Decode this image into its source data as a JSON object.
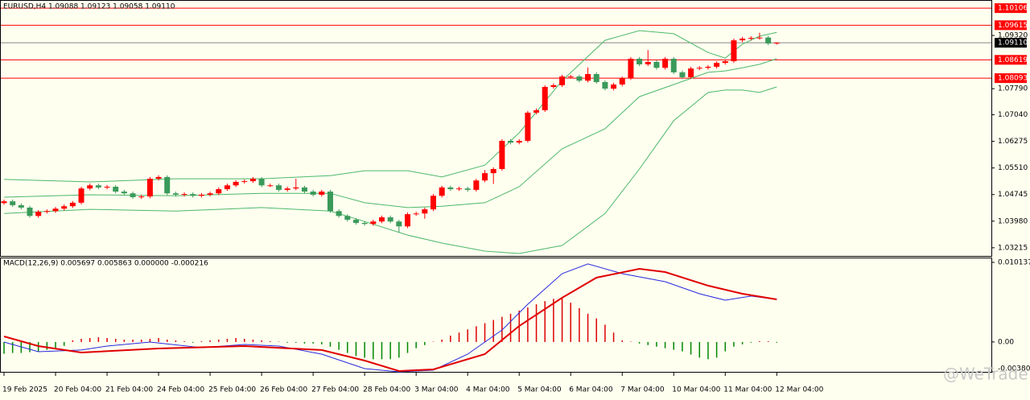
{
  "chart_data": [
    {
      "type": "candlestick",
      "title": "EURUSD,H4  1.09088 1.09123 1.09058 1.09110",
      "up_color": "#ff0000",
      "down_color": "#3a9a5a",
      "open": [
        1.045,
        1.0455,
        1.0444,
        1.0437,
        1.0413,
        1.0425,
        1.0427,
        1.0434,
        1.0441,
        1.0451,
        1.0492,
        1.0501,
        1.0495,
        1.0497,
        1.0483,
        1.0478,
        1.0467,
        1.0469,
        1.052,
        1.0525,
        1.0478,
        1.0474,
        1.0476,
        1.0471,
        1.0474,
        1.0478,
        1.049,
        1.0501,
        1.0511,
        1.0513,
        1.052,
        1.0501,
        1.0501,
        1.0488,
        1.0492,
        1.0495,
        1.0483,
        1.0474,
        1.0483,
        1.0427,
        1.0413,
        1.0402,
        1.0393,
        1.039,
        1.0397,
        1.0409,
        1.0397,
        1.0383,
        1.0418,
        1.042,
        1.0432,
        1.0471,
        1.0495,
        1.049,
        1.0492,
        1.0488,
        1.0515,
        1.0536,
        1.0548,
        1.0629,
        1.0624,
        1.0629,
        1.071,
        1.0717,
        1.0784,
        1.0789,
        1.0814,
        1.0814,
        1.0802,
        1.0821,
        1.0798,
        1.0779,
        1.0791,
        1.0809,
        1.0865,
        1.0849,
        1.0856,
        1.0839,
        1.0865,
        1.0826,
        1.0812,
        1.0837,
        1.0839,
        1.0842,
        1.0853,
        1.0858,
        1.0918,
        1.0923,
        1.0925,
        1.0926,
        1.09088
      ],
      "high": [
        1.046,
        1.046,
        1.0449,
        1.0442,
        1.043,
        1.0432,
        1.0439,
        1.0446,
        1.0456,
        1.0497,
        1.0506,
        1.0506,
        1.0502,
        1.0502,
        1.0488,
        1.0483,
        1.0474,
        1.0525,
        1.053,
        1.053,
        1.0483,
        1.0481,
        1.0481,
        1.0479,
        1.0483,
        1.0495,
        1.0506,
        1.0516,
        1.0518,
        1.0525,
        1.0525,
        1.0506,
        1.0506,
        1.0497,
        1.052,
        1.05,
        1.0488,
        1.0488,
        1.0488,
        1.0432,
        1.0418,
        1.0407,
        1.0398,
        1.0402,
        1.0414,
        1.0414,
        1.0402,
        1.0423,
        1.0425,
        1.0437,
        1.0476,
        1.05,
        1.05,
        1.0497,
        1.0497,
        1.052,
        1.0545,
        1.0553,
        1.0634,
        1.0634,
        1.0634,
        1.0715,
        1.0722,
        1.0789,
        1.0794,
        1.0819,
        1.0819,
        1.0819,
        1.084,
        1.0826,
        1.0803,
        1.0796,
        1.0814,
        1.087,
        1.087,
        1.089,
        1.0861,
        1.087,
        1.087,
        1.0831,
        1.0842,
        1.0844,
        1.0847,
        1.0858,
        1.0863,
        1.0923,
        1.0928,
        1.093,
        1.094,
        1.0931,
        1.09123
      ],
      "low": [
        1.0445,
        1.0439,
        1.0432,
        1.0408,
        1.0408,
        1.042,
        1.0422,
        1.0429,
        1.0436,
        1.0446,
        1.0487,
        1.049,
        1.049,
        1.0478,
        1.0473,
        1.0462,
        1.0462,
        1.0464,
        1.0515,
        1.0473,
        1.0469,
        1.0469,
        1.0466,
        1.0466,
        1.0469,
        1.0473,
        1.0485,
        1.0496,
        1.0506,
        1.0508,
        1.0496,
        1.0496,
        1.0483,
        1.0483,
        1.0487,
        1.0478,
        1.0469,
        1.0469,
        1.0422,
        1.0408,
        1.0397,
        1.0388,
        1.0385,
        1.0385,
        1.0392,
        1.0392,
        1.0365,
        1.0378,
        1.0413,
        1.0405,
        1.0427,
        1.0466,
        1.0485,
        1.0485,
        1.0483,
        1.0483,
        1.051,
        1.0505,
        1.0543,
        1.0619,
        1.0619,
        1.0624,
        1.0705,
        1.0712,
        1.0779,
        1.0784,
        1.0809,
        1.0797,
        1.0797,
        1.0793,
        1.0774,
        1.0774,
        1.0786,
        1.0804,
        1.0844,
        1.0844,
        1.0834,
        1.0834,
        1.0821,
        1.0807,
        1.0807,
        1.0832,
        1.0834,
        1.0837,
        1.0848,
        1.0853,
        1.0913,
        1.0918,
        1.092,
        1.0904,
        1.09058
      ],
      "close": [
        1.0455,
        1.0444,
        1.0437,
        1.0413,
        1.0425,
        1.0427,
        1.0434,
        1.0441,
        1.0451,
        1.0492,
        1.0501,
        1.0495,
        1.0497,
        1.0483,
        1.0478,
        1.0467,
        1.0469,
        1.052,
        1.0525,
        1.0478,
        1.0474,
        1.0476,
        1.0471,
        1.0474,
        1.0478,
        1.049,
        1.0501,
        1.0511,
        1.0513,
        1.052,
        1.0501,
        1.0501,
        1.0488,
        1.0492,
        1.0495,
        1.0483,
        1.0474,
        1.0483,
        1.0427,
        1.0413,
        1.0402,
        1.0393,
        1.039,
        1.0397,
        1.0409,
        1.0397,
        1.0383,
        1.0418,
        1.042,
        1.0432,
        1.0471,
        1.0495,
        1.049,
        1.0492,
        1.0488,
        1.0515,
        1.0536,
        1.0548,
        1.0629,
        1.0624,
        1.0629,
        1.071,
        1.0717,
        1.0784,
        1.0789,
        1.0814,
        1.0814,
        1.0802,
        1.0821,
        1.0798,
        1.0779,
        1.0791,
        1.0809,
        1.0865,
        1.0849,
        1.0856,
        1.0839,
        1.0865,
        1.0826,
        1.0812,
        1.0837,
        1.0839,
        1.0842,
        1.0853,
        1.0858,
        1.0918,
        1.0923,
        1.0925,
        1.0926,
        1.0909,
        1.0911
      ],
      "bands": {
        "color": "#4cb86a",
        "x": [
          0,
          10,
          20,
          30,
          38,
          42,
          47,
          51,
          56,
          60,
          65,
          70,
          74,
          78,
          82,
          84,
          86,
          88,
          90
        ],
        "upper": [
          1.0518,
          1.0511,
          1.052,
          1.052,
          1.0529,
          1.0543,
          1.0543,
          1.0525,
          1.0559,
          1.0652,
          1.0802,
          1.0918,
          1.0946,
          1.0937,
          1.0883,
          1.0867,
          1.0907,
          1.093,
          1.0941
        ],
        "middle": [
          1.0467,
          1.0474,
          1.0471,
          1.0478,
          1.0478,
          1.0451,
          1.0437,
          1.0441,
          1.0451,
          1.0497,
          1.0606,
          1.0664,
          1.0756,
          1.0791,
          1.0826,
          1.083,
          1.0839,
          1.0849,
          1.0865
        ],
        "lower": [
          1.042,
          1.0432,
          1.0427,
          1.0437,
          1.0427,
          1.0397,
          1.0358,
          1.0335,
          1.0312,
          1.0305,
          1.0328,
          1.042,
          1.0548,
          1.0687,
          1.0768,
          1.0775,
          1.0775,
          1.0768,
          1.0784
        ]
      },
      "levels": [
        1.10106,
        1.09615,
        1.08619,
        1.08093
      ],
      "level_color": "#ff0000",
      "current": {
        "value": 1.0911,
        "label": "1.09110"
      },
      "current_color": "#000000",
      "ylim": [
        1.0298,
        1.1034
      ],
      "yticks": [
        {
          "value": 1.0932,
          "label": "1.09320"
        },
        {
          "value": 1.0779,
          "label": "1.07790"
        },
        {
          "value": 1.0704,
          "label": "1.07040"
        },
        {
          "value": 1.06275,
          "label": "1.06275"
        },
        {
          "value": 1.0551,
          "label": "1.05510"
        },
        {
          "value": 1.04745,
          "label": "1.04745"
        },
        {
          "value": 1.0398,
          "label": "1.03980"
        },
        {
          "value": 1.03215,
          "label": "1.03215"
        }
      ],
      "xlim": [
        -0.5,
        114.5
      ],
      "xticks": [
        {
          "value": 0,
          "label": "19 Feb 2025"
        },
        {
          "value": 6,
          "label": "20 Feb 04:00"
        },
        {
          "value": 12,
          "label": "21 Feb 04:00"
        },
        {
          "value": 18,
          "label": "24 Feb 04:00"
        },
        {
          "value": 24,
          "label": "25 Feb 04:00"
        },
        {
          "value": 30,
          "label": "26 Feb 04:00"
        },
        {
          "value": 36,
          "label": "27 Feb 04:00"
        },
        {
          "value": 42,
          "label": "28 Feb 04:00"
        },
        {
          "value": 48,
          "label": "3 Mar 04:00"
        },
        {
          "value": 54,
          "label": "4 Mar 04:00"
        },
        {
          "value": 60,
          "label": "5 Mar 04:00"
        },
        {
          "value": 66,
          "label": "6 Mar 04:00"
        },
        {
          "value": 72,
          "label": "7 Mar 04:00"
        },
        {
          "value": 78,
          "label": "10 Mar 04:00"
        },
        {
          "value": 84,
          "label": "11 Mar 04:00"
        },
        {
          "value": 90,
          "label": "12 Mar 04:00"
        }
      ],
      "watermark": "@WeTrade"
    },
    {
      "type": "macd",
      "title": "MACD(12,26,9) 0.005697 0.005863 0.000000 -0.000216",
      "up_color": "#dd0000",
      "down_color": "#008800",
      "values": [
        -0.0015,
        -0.0014,
        -0.0014,
        -0.0013,
        -0.0012,
        -0.001,
        -0.0008,
        -0.0005,
        0.0002,
        0.0004,
        0.0005,
        0.0006,
        0.0005,
        0.0004,
        0.0003,
        0.0003,
        0.0003,
        0.0004,
        0.0005,
        0.0003,
        0.0002,
        0.0001,
        -0.0001,
        0.0001,
        0.0002,
        0.0003,
        0.0004,
        0.0005,
        0.0004,
        0.0003,
        0.0002,
        0.0001,
        0,
        -0.0001,
        -0.0001,
        -0.0002,
        -0.0002,
        -0.0003,
        -0.0006,
        -0.001,
        -0.0014,
        -0.0018,
        -0.002,
        -0.0022,
        -0.0022,
        -0.0022,
        -0.002,
        -0.0014,
        -0.0008,
        -0.0004,
        0,
        0.0003,
        0.0008,
        0.0012,
        0.0016,
        0.002,
        0.0024,
        0.0028,
        0.0032,
        0.0036,
        0.004,
        0.0044,
        0.0048,
        0.0052,
        0.0055,
        0.0057,
        0.005,
        0.0043,
        0.0036,
        0.003,
        0.0022,
        0.0012,
        0.0002,
        0,
        -0.0002,
        -0.0004,
        -0.0006,
        -0.0008,
        -0.001,
        -0.0012,
        -0.0016,
        -0.002,
        -0.0022,
        -0.002,
        -0.0012,
        -0.0006,
        -0.0003,
        -0.0001,
        0.0001,
        0.0001,
        -0.0001
      ],
      "lines": [
        {
          "color": "#2828e0",
          "x": [
            0,
            4,
            9,
            12,
            17,
            23,
            28,
            32,
            37,
            42,
            46,
            50,
            54,
            58,
            61,
            65,
            68,
            72,
            77,
            81,
            84,
            87,
            90
          ],
          "values": [
            -1e-05,
            -0.00124,
            -0.00103,
            -0.00052,
            -1e-05,
            -0.00073,
            -0.00032,
            -0.00052,
            -0.00155,
            -0.00339,
            -0.0038,
            -0.0036,
            -0.00155,
            0.00153,
            0.00481,
            0.0087,
            0.00994,
            0.0087,
            0.00768,
            0.00614,
            0.00532,
            0.00584,
            0.00542
          ]
        },
        {
          "color": "#e00000",
          "x": [
            0,
            4,
            9,
            18,
            28,
            37,
            42,
            46,
            50,
            56,
            60,
            65,
            69,
            74,
            77,
            82,
            86,
            90
          ],
          "values": [
            0.00071,
            -0.00052,
            -0.00134,
            -0.00083,
            -0.00052,
            -0.00103,
            -0.00237,
            -0.0037,
            -0.0035,
            -0.00155,
            0.00204,
            0.00563,
            0.00819,
            0.00932,
            0.00891,
            0.00717,
            0.00614,
            0.00542
          ]
        }
      ],
      "ylim": [
        -0.003804,
        0.010137
      ],
      "yticks": [
        0.010137,
        {
          "value": 0,
          "label": "0.00"
        },
        -0.003804
      ]
    }
  ]
}
